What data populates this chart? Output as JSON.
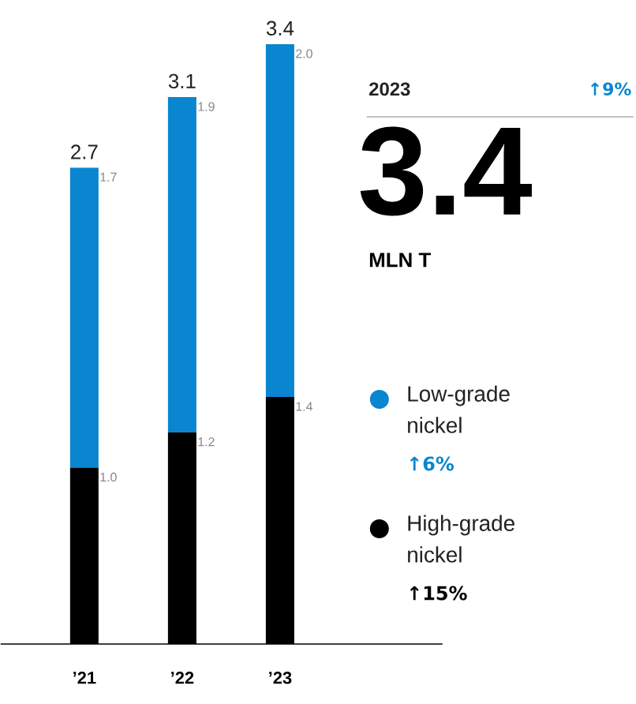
{
  "chart_data": {
    "type": "bar",
    "stacked": true,
    "legend": "right",
    "categories": [
      "’21",
      "’22",
      "’23"
    ],
    "series": [
      {
        "name": "High-grade nickel",
        "color": "#000000",
        "values": [
          1.0,
          1.2,
          1.4
        ],
        "value_labels": [
          "1.0",
          "1.2",
          "1.4"
        ]
      },
      {
        "name": "Low-grade nickel",
        "color": "#0a85cf",
        "values": [
          1.7,
          1.9,
          2.0
        ],
        "value_labels": [
          "1.7",
          "1.9",
          "2.0"
        ]
      }
    ],
    "totals": [
      "2.7",
      "3.1",
      "3.4"
    ],
    "annotations": [
      "2023",
      "↑9%",
      "3.4",
      "MLN T",
      "↑15%",
      "↑6%"
    ]
  }
}
